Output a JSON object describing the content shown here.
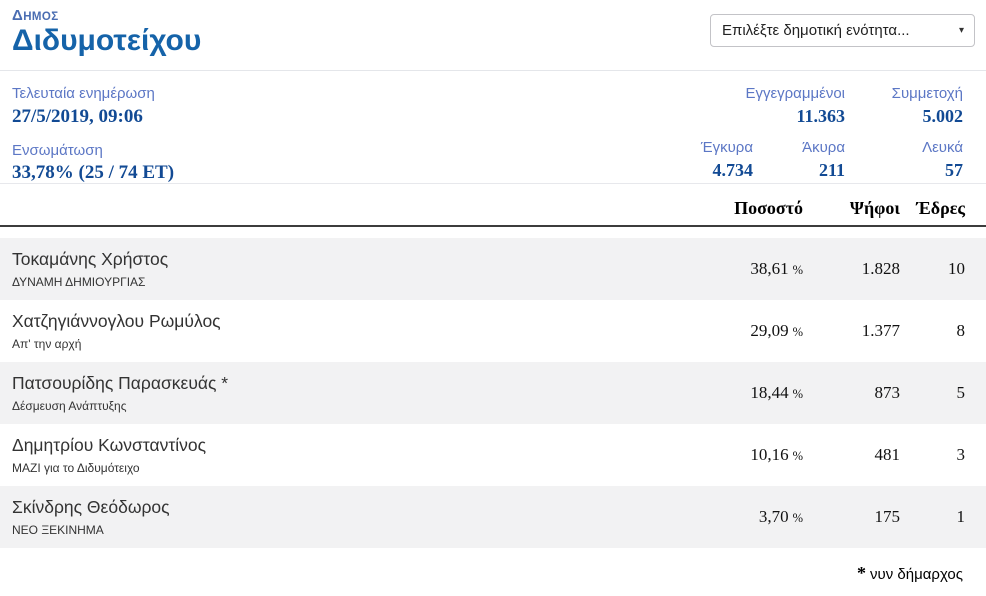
{
  "header": {
    "municipality_label": "ΔΗΜΟΣ",
    "municipality_name": "Διδυμοτείχου",
    "unit_select": {
      "placeholder": "Επιλέξτε δημοτική ενότητα...",
      "caret": "▾"
    }
  },
  "stats": {
    "last_update": {
      "label": "Τελευταία ενημέρωση",
      "value": "27/5/2019, 09:06"
    },
    "integration": {
      "label": "Ενσωμάτωση",
      "value": "33,78% (25 / 74 ΕΤ)"
    },
    "registered": {
      "label": "Εγγεγραμμένοι",
      "value": "11.363"
    },
    "turnout": {
      "label": "Συμμετοχή",
      "value": "5.002"
    },
    "valid": {
      "label": "Έγκυρα",
      "value": "4.734"
    },
    "invalid": {
      "label": "Άκυρα",
      "value": "211"
    },
    "blank": {
      "label": "Λευκά",
      "value": "57"
    }
  },
  "table": {
    "headers": {
      "percent": "Ποσοστό",
      "votes": "Ψήφοι",
      "seats": "Έδρες"
    },
    "percent_sign": "%",
    "rows": [
      {
        "candidate": "Τοκαμάνης Χρήστος",
        "party": "ΔΥΝΑΜΗ ΔΗΜΙΟΥΡΓΙΑΣ",
        "percent": "38,61",
        "votes": "1.828",
        "seats": "10"
      },
      {
        "candidate": "Χατζηγιάννογλου Ρωμύλος",
        "party": "Απ' την αρχή",
        "percent": "29,09",
        "votes": "1.377",
        "seats": "8"
      },
      {
        "candidate": "Πατσουρίδης Παρασκευάς *",
        "party": "Δέσμευση Ανάπτυξης",
        "percent": "18,44",
        "votes": "873",
        "seats": "5"
      },
      {
        "candidate": "Δημητρίου Κωνσταντίνος",
        "party": "ΜΑΖΙ για το Διδυμότειχο",
        "percent": "10,16",
        "votes": "481",
        "seats": "3"
      },
      {
        "candidate": "Σκίνδρης Θεόδωρος",
        "party": "ΝΕΟ ΞΕΚΙΝΗΜΑ",
        "percent": "3,70",
        "votes": "175",
        "seats": "1"
      }
    ]
  },
  "footnote": {
    "asterisk": "*",
    "text": "νυν δήμαρχος"
  },
  "colors": {
    "title_blue": "#1563a9",
    "label_blue": "#5c77c5",
    "value_navy": "#124a94",
    "row_alt_gray": "#f2f2f3"
  }
}
